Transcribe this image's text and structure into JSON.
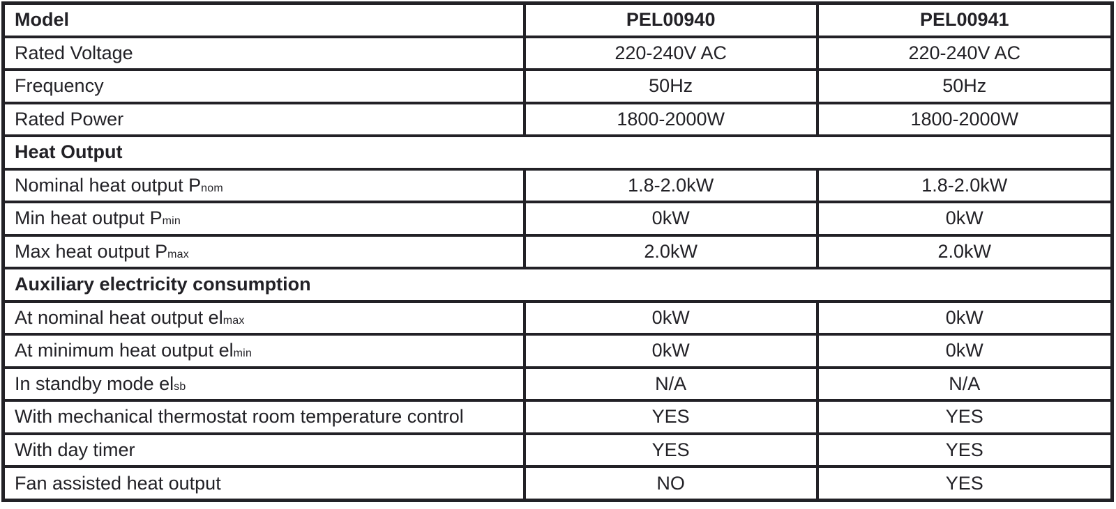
{
  "table": {
    "header": {
      "model_col": "Model",
      "model_1": "PEL00940",
      "model_2": "PEL00941"
    },
    "sections": {
      "heat_output": "Heat Output",
      "auxiliary": "Auxiliary electricity consumption"
    },
    "rows": [
      {
        "label": "Rated Voltage",
        "sub": "",
        "values": [
          "220-240V AC",
          "220-240V AC"
        ]
      },
      {
        "label": "Frequency",
        "sub": "",
        "values": [
          "50Hz",
          "50Hz"
        ]
      },
      {
        "label": "Rated Power",
        "sub": "",
        "values": [
          "1800-2000W",
          "1800-2000W"
        ]
      },
      {
        "label": "Nominal heat output P",
        "sub": "nom",
        "values": [
          "1.8-2.0kW",
          "1.8-2.0kW"
        ]
      },
      {
        "label": "Min heat output P",
        "sub": "min",
        "values": [
          "0kW",
          "0kW"
        ]
      },
      {
        "label": "Max heat output P",
        "sub": "max",
        "values": [
          "2.0kW",
          "2.0kW"
        ]
      },
      {
        "label": "At nominal heat output el",
        "sub": "max",
        "values": [
          "0kW",
          "0kW"
        ]
      },
      {
        "label": "At minimum heat output el",
        "sub": "min",
        "values": [
          "0kW",
          "0kW"
        ]
      },
      {
        "label": "In standby mode el",
        "sub": "sb",
        "values": [
          "N/A",
          "N/A"
        ]
      },
      {
        "label": "With mechanical thermostat room temperature control",
        "sub": "",
        "values": [
          "YES",
          "YES"
        ]
      },
      {
        "label": "With day timer",
        "sub": "",
        "values": [
          "YES",
          "YES"
        ]
      },
      {
        "label": "Fan assisted heat output",
        "sub": "",
        "values": [
          "NO",
          "YES"
        ]
      }
    ]
  }
}
